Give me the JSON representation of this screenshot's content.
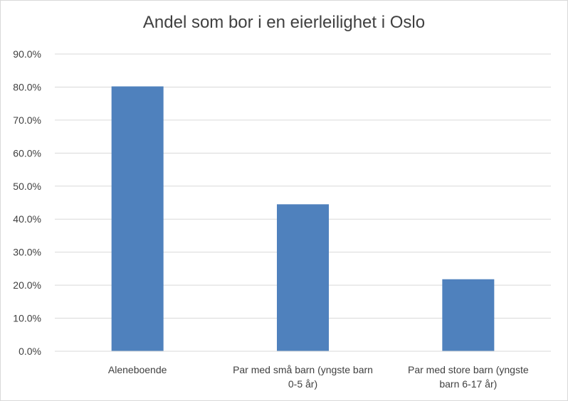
{
  "chart_data": {
    "type": "bar",
    "title": "Andel som bor i en eierleilighet i Oslo",
    "categories": [
      [
        "Aleneboende"
      ],
      [
        "Par med små barn (yngste barn",
        "0-5 år)"
      ],
      [
        "Par med store barn (yngste",
        "barn 6-17 år)"
      ]
    ],
    "values": [
      80.2,
      44.5,
      21.8
    ],
    "y_tick_labels": [
      "0.0%",
      "10.0%",
      "20.0%",
      "30.0%",
      "40.0%",
      "50.0%",
      "60.0%",
      "70.0%",
      "80.0%",
      "90.0%"
    ],
    "ylim": [
      0,
      90
    ],
    "y_step": 10,
    "xlabel": "",
    "ylabel": "",
    "grid": true,
    "legend": "none",
    "bar_color": "#4f81bd",
    "grid_color": "#d9d9d9"
  }
}
